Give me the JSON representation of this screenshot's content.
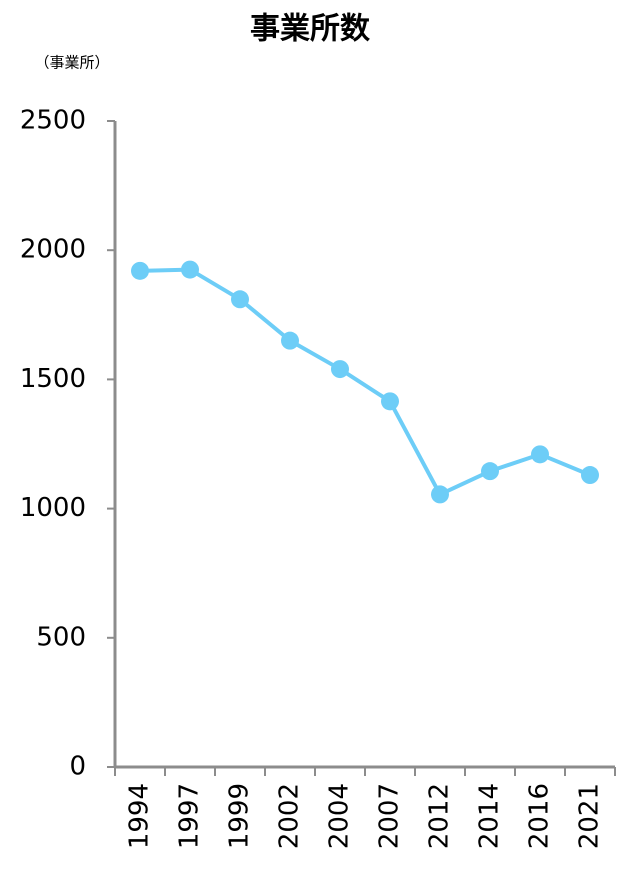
{
  "chart_data": {
    "type": "line",
    "title": "事業所数",
    "y_label": "（事業所）",
    "categories": [
      "1994",
      "1997",
      "1999",
      "2002",
      "2004",
      "2007",
      "2012",
      "2014",
      "2016",
      "2021"
    ],
    "values": [
      1920,
      1925,
      1810,
      1650,
      1540,
      1415,
      1055,
      1145,
      1210,
      1130
    ],
    "color": "#6dcdf7",
    "ylim": [
      0,
      2500
    ],
    "yticks": [
      0,
      500,
      1000,
      1500,
      2000,
      2500
    ],
    "grid": false
  }
}
